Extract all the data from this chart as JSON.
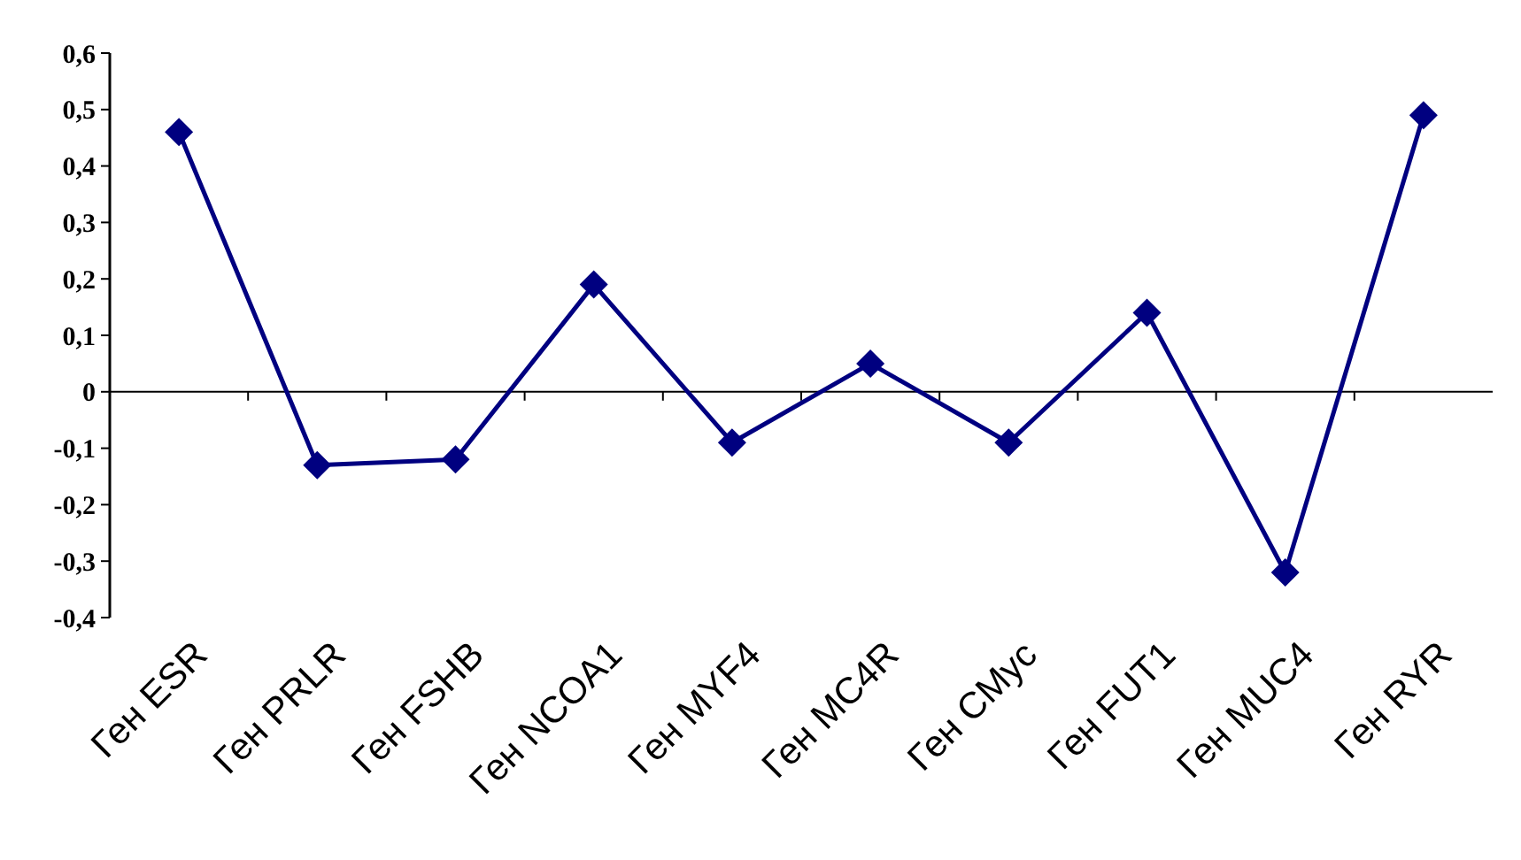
{
  "chart_data": {
    "type": "line",
    "categories": [
      "Ген ESR",
      "Ген PRLR",
      "Ген FSHB",
      "Ген NCOA1",
      "Ген MYF4",
      "Ген MC4R",
      "Ген CMyc",
      "Ген FUT1",
      "Ген MUC4",
      "Ген RYR"
    ],
    "series": [
      {
        "color": "#000080",
        "values": [
          0.46,
          -0.13,
          -0.12,
          0.19,
          -0.09,
          0.05,
          -0.09,
          0.14,
          -0.32,
          0.49
        ]
      }
    ],
    "ylim": [
      -0.4,
      0.6
    ],
    "yticks": [
      {
        "value": -0.4,
        "label": "-0,4"
      },
      {
        "value": -0.3,
        "label": "-0,3"
      },
      {
        "value": -0.2,
        "label": "-0,2"
      },
      {
        "value": -0.1,
        "label": "-0,1"
      },
      0,
      {
        "value": 0.1,
        "label": "0,1"
      },
      {
        "value": 0.2,
        "label": "0,2"
      },
      {
        "value": 0.3,
        "label": "0,3"
      },
      {
        "value": 0.4,
        "label": "0,4"
      },
      {
        "value": 0.5,
        "label": "0,5"
      },
      {
        "value": 0.6,
        "label": "0,6"
      }
    ],
    "marker": "diamond",
    "line_style": "solid"
  }
}
